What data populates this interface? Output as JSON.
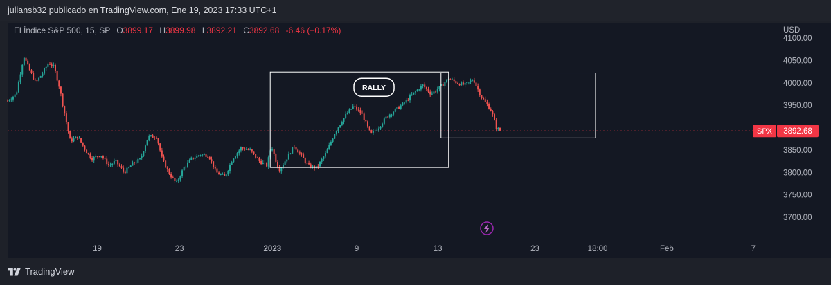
{
  "header": {
    "publisher_line": "juliansb32 publicado en TradingView.com, Ene 19, 2023 17:33 UTC+1"
  },
  "legend": {
    "symbol": "El Índice S&P 500, 15, SP",
    "o_label": "O",
    "o_value": "3899.17",
    "h_label": "H",
    "h_value": "3899.98",
    "l_label": "L",
    "l_value": "3892.21",
    "c_label": "C",
    "c_value": "3892.68",
    "change": "-6.46 (−0.17%)"
  },
  "axis": {
    "currency": "USD"
  },
  "footer": {
    "brand": "TradingView"
  },
  "colors": {
    "up": "#26a69a",
    "down": "#ef5350",
    "price_tag": "#f23645",
    "box": "#ffffff"
  },
  "chart_data": {
    "type": "line",
    "title": "El Índice S&P 500, 15, SP",
    "ylabel": "USD",
    "ylim": [
      3650,
      4110
    ],
    "y_ticks": [
      3700,
      3750,
      3800,
      3850,
      3900,
      3950,
      4000,
      4050,
      4100
    ],
    "y_tick_labels": [
      "3700.00",
      "3750.00",
      "3800.00",
      "3850.00",
      "3900.00",
      "3950.00",
      "4000.00",
      "4050.00",
      "4100.00"
    ],
    "x_ticks": [
      {
        "label": "19",
        "t": 8.3
      },
      {
        "label": "23",
        "t": 15.9
      },
      {
        "label": "2023",
        "t": 24.5
      },
      {
        "label": "9",
        "t": 32.3
      },
      {
        "label": "13",
        "t": 39.8
      },
      {
        "label": "23",
        "t": 48.8
      },
      {
        "label": "18:00",
        "t": 54.6
      },
      {
        "label": "Feb",
        "t": 61.0
      },
      {
        "label": "7",
        "t": 69.0
      }
    ],
    "x_range": [
      0,
      71
    ],
    "series": [
      {
        "name": "SPX",
        "values": [
          [
            0,
            3960
          ],
          [
            0.8,
            3975
          ],
          [
            1.5,
            4060
          ],
          [
            2.0,
            4030
          ],
          [
            2.6,
            4000
          ],
          [
            3.2,
            4020
          ],
          [
            3.8,
            4045
          ],
          [
            4.3,
            4035
          ],
          [
            4.8,
            3990
          ],
          [
            5.2,
            3940
          ],
          [
            5.8,
            3870
          ],
          [
            6.5,
            3880
          ],
          [
            7.2,
            3850
          ],
          [
            7.8,
            3830
          ],
          [
            8.6,
            3840
          ],
          [
            9.4,
            3815
          ],
          [
            10.0,
            3825
          ],
          [
            10.8,
            3800
          ],
          [
            11.6,
            3820
          ],
          [
            12.3,
            3830
          ],
          [
            13.0,
            3880
          ],
          [
            13.8,
            3880
          ],
          [
            14.3,
            3830
          ],
          [
            14.9,
            3800
          ],
          [
            15.6,
            3775
          ],
          [
            16.3,
            3810
          ],
          [
            17.0,
            3830
          ],
          [
            17.8,
            3840
          ],
          [
            18.6,
            3838
          ],
          [
            19.3,
            3800
          ],
          [
            20.1,
            3790
          ],
          [
            20.8,
            3830
          ],
          [
            21.6,
            3855
          ],
          [
            22.4,
            3850
          ],
          [
            23.3,
            3825
          ],
          [
            24.0,
            3815
          ],
          [
            24.4,
            3860
          ],
          [
            25.1,
            3805
          ],
          [
            25.8,
            3830
          ],
          [
            26.5,
            3860
          ],
          [
            27.1,
            3840
          ],
          [
            27.8,
            3815
          ],
          [
            28.6,
            3810
          ],
          [
            29.5,
            3845
          ],
          [
            30.3,
            3890
          ],
          [
            31.2,
            3925
          ],
          [
            32.0,
            3948
          ],
          [
            32.8,
            3930
          ],
          [
            33.6,
            3885
          ],
          [
            34.3,
            3900
          ],
          [
            35.1,
            3925
          ],
          [
            35.9,
            3940
          ],
          [
            36.7,
            3955
          ],
          [
            37.5,
            3975
          ],
          [
            38.4,
            3995
          ],
          [
            39.2,
            3975
          ],
          [
            40.0,
            3990
          ],
          [
            40.8,
            4010
          ],
          [
            41.6,
            4000
          ],
          [
            42.3,
            3995
          ],
          [
            43.1,
            4008
          ],
          [
            43.8,
            3970
          ],
          [
            44.4,
            3950
          ],
          [
            44.8,
            3935
          ],
          [
            45.2,
            3900
          ],
          [
            45.6,
            3893
          ]
        ]
      }
    ],
    "last_price": 3892.68,
    "price_tag_label": "SPX",
    "price_tag_value": "3892.68",
    "annotations": [
      {
        "type": "rectangle",
        "t1": 24.3,
        "t2": 40.8,
        "p1": 3811,
        "p2": 4024
      },
      {
        "type": "rectangle",
        "t1": 40.1,
        "t2": 54.4,
        "p1": 3877,
        "p2": 4022
      },
      {
        "type": "label",
        "text": "RALLY",
        "t": 33.9,
        "p": 3990
      },
      {
        "type": "horizontal-line",
        "p": 3892.68
      }
    ],
    "grid": false,
    "candle_interval": "15"
  }
}
